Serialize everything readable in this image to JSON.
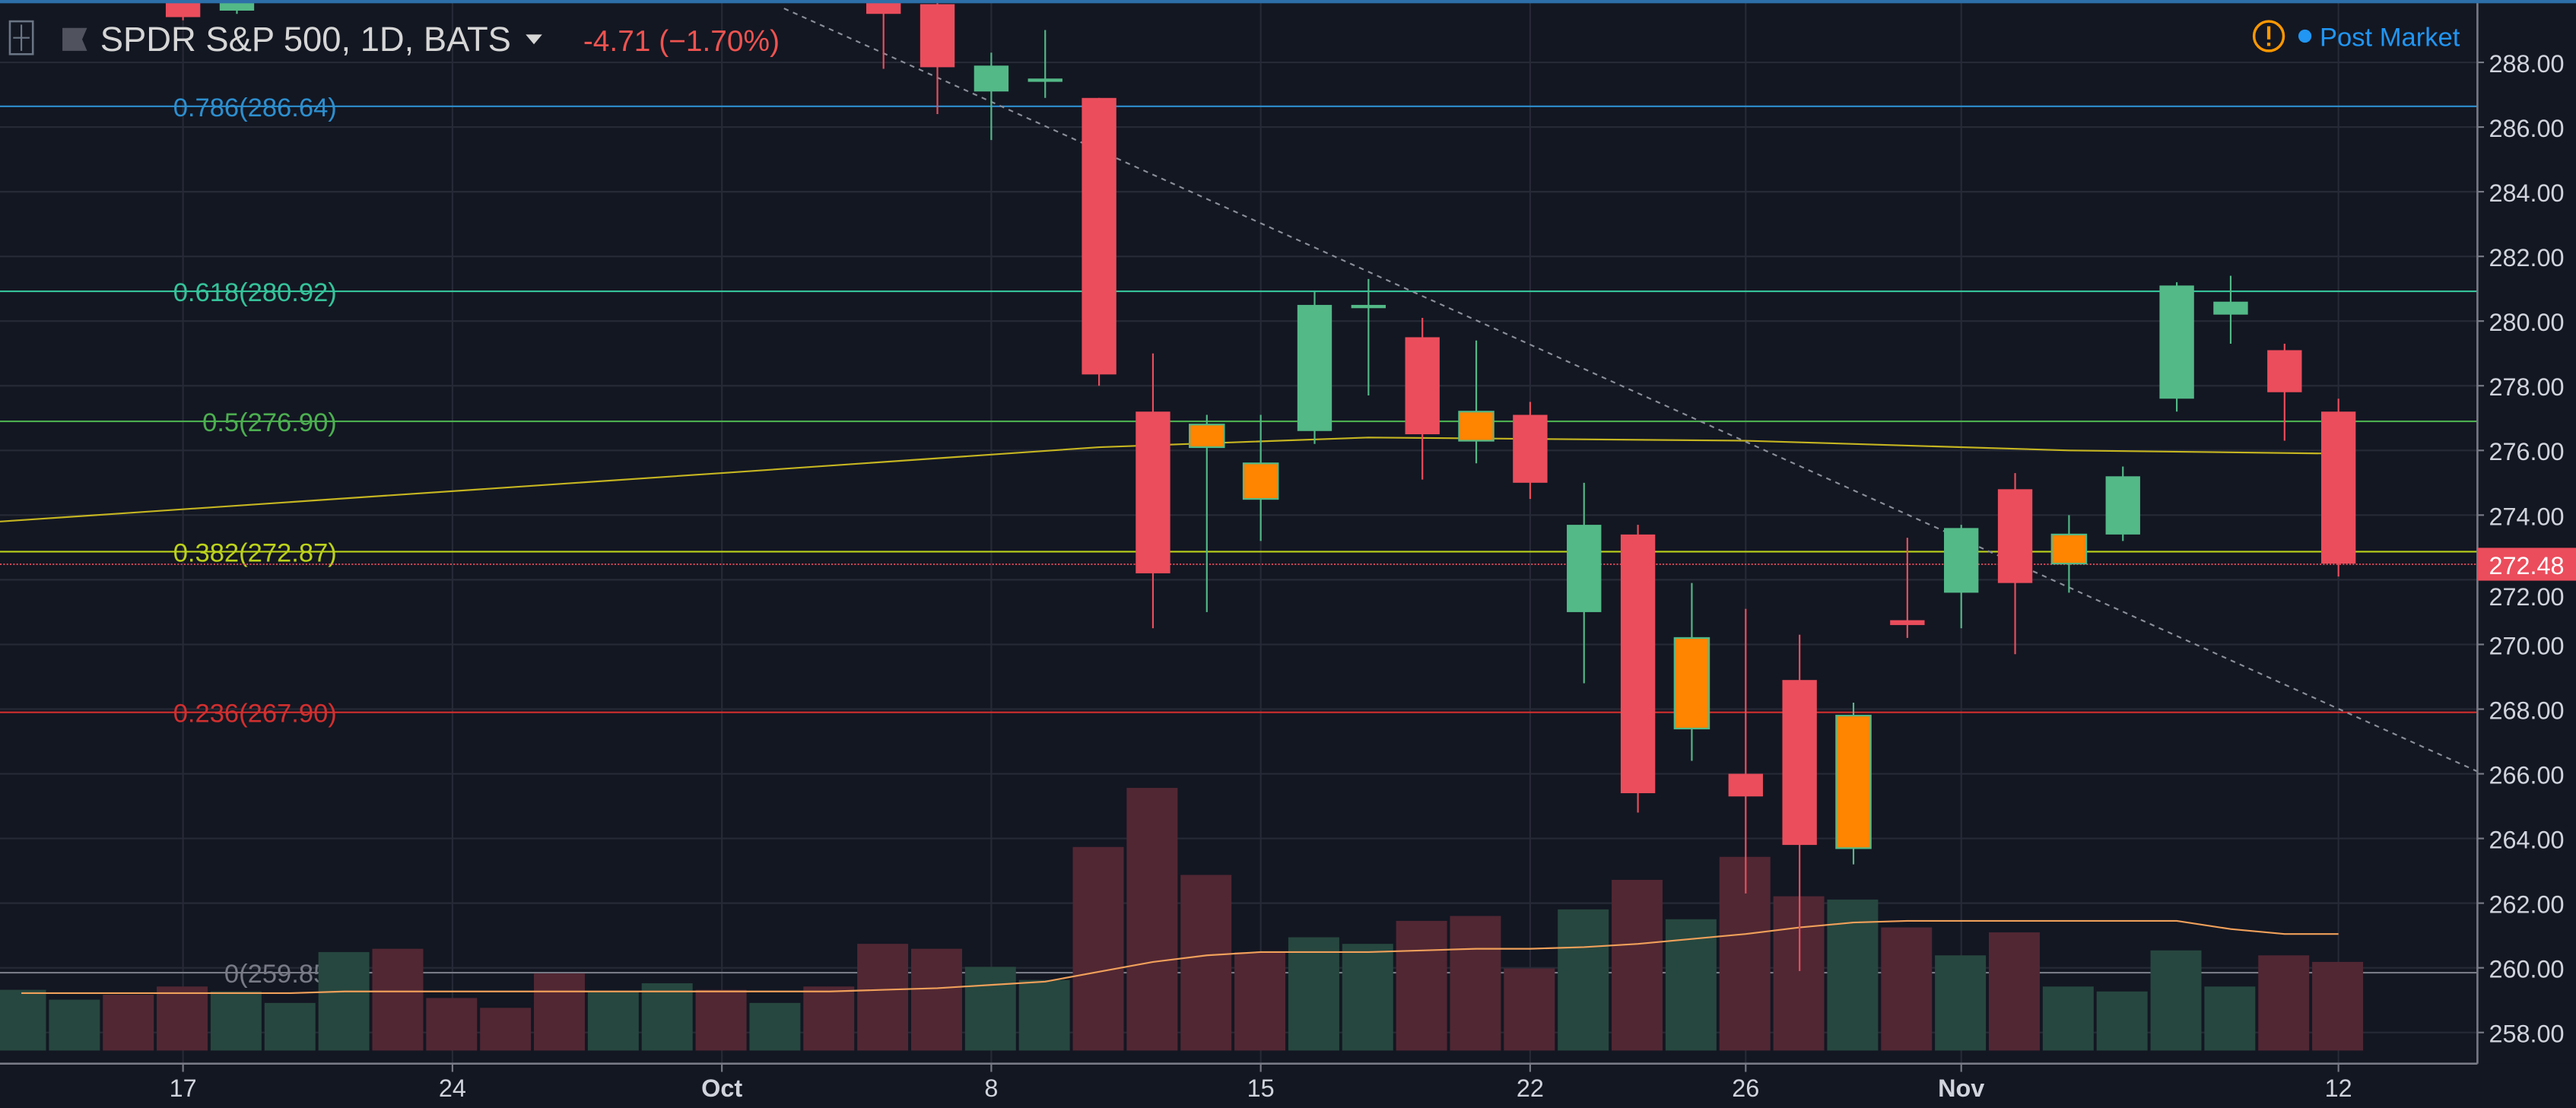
{
  "header": {
    "symbol_title": "SPDR S&P 500, 1D, BATS",
    "change": "-4.71 (−1.70%)",
    "status_label": "Post Market",
    "warning_icon": "exclamation-circle-icon",
    "colors": {
      "change": "#ef5350",
      "status": "#2196f3",
      "warning": "#ff9800"
    }
  },
  "colors": {
    "up": "#53b987",
    "down": "#eb4d5c",
    "highlight": "#ff8400",
    "vol_up": "#26473f",
    "vol_down": "#512733",
    "ma": "#c5b521",
    "vol_ma": "#f0a05a",
    "price_label_bg": "#eb4d5c"
  },
  "chart_data": {
    "type": "candlestick",
    "title": "SPDR S&P 500, 1D, BATS",
    "ylim": [
      257.2,
      289.9
    ],
    "y_ticks": [
      "258.00",
      "260.00",
      "262.00",
      "264.00",
      "266.00",
      "268.00",
      "270.00",
      "272.00",
      "274.00",
      "276.00",
      "278.00",
      "280.00",
      "282.00",
      "284.00",
      "286.00",
      "288.00"
    ],
    "x_ticks": [
      {
        "label": "17",
        "date": "Sep 17"
      },
      {
        "label": "24",
        "date": "Sep 24"
      },
      {
        "label": "Oct",
        "date": "Oct 1"
      },
      {
        "label": "8",
        "date": "Oct 8"
      },
      {
        "label": "15",
        "date": "Oct 15"
      },
      {
        "label": "22",
        "date": "Oct 22"
      },
      {
        "label": "26",
        "date": "Oct 26"
      },
      {
        "label": "Nov",
        "date": "Nov 1"
      },
      {
        "label": "12",
        "date": "Nov 12"
      }
    ],
    "dates": [
      "Sep 12",
      "Sep 13",
      "Sep 14",
      "Sep 17",
      "Sep 18",
      "Sep 19",
      "Sep 20",
      "Sep 21",
      "Sep 24",
      "Sep 25",
      "Sep 26",
      "Sep 27",
      "Sep 28",
      "Oct 1",
      "Oct 2",
      "Oct 3",
      "Oct 4",
      "Oct 5",
      "Oct 8",
      "Oct 9",
      "Oct 10",
      "Oct 11",
      "Oct 12",
      "Oct 15",
      "Oct 16",
      "Oct 17",
      "Oct 18",
      "Oct 19",
      "Oct 22",
      "Oct 23",
      "Oct 24",
      "Oct 25",
      "Oct 26",
      "Oct 29",
      "Oct 30",
      "Oct 31",
      "Nov 1",
      "Nov 2",
      "Nov 5",
      "Nov 6",
      "Nov 7",
      "Nov 8",
      "Nov 9",
      "Nov 12"
    ],
    "candles": [
      {
        "date": "Sep 17",
        "o": 290.0,
        "h": 290.2,
        "l": 289.3,
        "c": 289.4
      },
      {
        "date": "Sep 18",
        "o": 289.6,
        "h": 290.4,
        "l": 289.5,
        "c": 290.3
      },
      {
        "date": "Oct 4",
        "o": 290.0,
        "h": 290.2,
        "l": 287.8,
        "c": 289.5
      },
      {
        "date": "Oct 5",
        "o": 289.8,
        "h": 290.2,
        "l": 286.4,
        "c": 287.85
      },
      {
        "date": "Oct 8",
        "o": 287.1,
        "h": 288.3,
        "l": 285.6,
        "c": 287.9
      },
      {
        "date": "Oct 9",
        "o": 287.4,
        "h": 289.0,
        "l": 286.9,
        "c": 287.5
      },
      {
        "date": "Oct 10",
        "o": 286.9,
        "h": 286.9,
        "l": 278.0,
        "c": 278.35
      },
      {
        "date": "Oct 11",
        "o": 277.2,
        "h": 279.0,
        "l": 270.5,
        "c": 272.2
      },
      {
        "date": "Oct 12",
        "o": 276.1,
        "h": 277.1,
        "l": 271.0,
        "c": 276.8,
        "highlight": true
      },
      {
        "date": "Oct 15",
        "o": 274.5,
        "h": 277.1,
        "l": 273.2,
        "c": 275.6,
        "highlight": true
      },
      {
        "date": "Oct 16",
        "o": 276.6,
        "h": 280.9,
        "l": 276.2,
        "c": 280.5
      },
      {
        "date": "Oct 17",
        "o": 280.4,
        "h": 281.3,
        "l": 277.7,
        "c": 280.5
      },
      {
        "date": "Oct 18",
        "o": 279.5,
        "h": 280.1,
        "l": 275.1,
        "c": 276.5
      },
      {
        "date": "Oct 19",
        "o": 276.3,
        "h": 279.4,
        "l": 275.6,
        "c": 277.2,
        "highlight": true
      },
      {
        "date": "Oct 22",
        "o": 277.1,
        "h": 277.5,
        "l": 274.5,
        "c": 275.0
      },
      {
        "date": "Oct 23",
        "o": 271.0,
        "h": 275.0,
        "l": 268.8,
        "c": 273.7
      },
      {
        "date": "Oct 24",
        "o": 273.4,
        "h": 273.7,
        "l": 264.8,
        "c": 265.4
      },
      {
        "date": "Oct 25",
        "o": 267.4,
        "h": 271.9,
        "l": 266.4,
        "c": 270.2,
        "highlight": true
      },
      {
        "date": "Oct 26",
        "o": 266.0,
        "h": 271.1,
        "l": 262.3,
        "c": 265.3
      },
      {
        "date": "Oct 29",
        "o": 268.9,
        "h": 270.3,
        "l": 259.9,
        "c": 263.8
      },
      {
        "date": "Oct 30",
        "o": 263.7,
        "h": 268.2,
        "l": 263.2,
        "c": 267.8,
        "highlight": true
      },
      {
        "date": "Oct 31",
        "o": 270.75,
        "h": 273.3,
        "l": 270.2,
        "c": 270.6
      },
      {
        "date": "Nov 1",
        "o": 271.6,
        "h": 273.7,
        "l": 270.5,
        "c": 273.6
      },
      {
        "date": "Nov 2",
        "o": 274.8,
        "h": 275.3,
        "l": 269.7,
        "c": 271.9
      },
      {
        "date": "Nov 5",
        "o": 272.5,
        "h": 274.0,
        "l": 271.6,
        "c": 273.4,
        "highlight": true
      },
      {
        "date": "Nov 6",
        "o": 273.4,
        "h": 275.5,
        "l": 273.2,
        "c": 275.2
      },
      {
        "date": "Nov 7",
        "o": 277.6,
        "h": 281.2,
        "l": 277.2,
        "c": 281.1
      },
      {
        "date": "Nov 8",
        "o": 280.2,
        "h": 281.4,
        "l": 279.3,
        "c": 280.6
      },
      {
        "date": "Nov 9",
        "o": 279.1,
        "h": 279.3,
        "l": 276.3,
        "c": 277.8
      },
      {
        "date": "Nov 12",
        "o": 277.2,
        "h": 277.6,
        "l": 272.1,
        "c": 272.5
      }
    ],
    "volume_relative": [
      37,
      31,
      34,
      39,
      36,
      29,
      60,
      62,
      32,
      26,
      47,
      36,
      41,
      37,
      29,
      39,
      65,
      62,
      51,
      43,
      124,
      160,
      107,
      60,
      69,
      65,
      79,
      82,
      50,
      86,
      104,
      80,
      118,
      94,
      92,
      75,
      58,
      72,
      39,
      36,
      61,
      39,
      58,
      54
    ],
    "volume_up": [
      true,
      true,
      false,
      false,
      true,
      true,
      true,
      false,
      false,
      false,
      false,
      true,
      true,
      false,
      true,
      false,
      false,
      false,
      true,
      true,
      false,
      false,
      false,
      false,
      true,
      true,
      false,
      false,
      false,
      true,
      false,
      true,
      false,
      false,
      true,
      false,
      true,
      false,
      true,
      true,
      true,
      true,
      false,
      false
    ],
    "volume_ma_relative": [
      35,
      35,
      35,
      35,
      35,
      35,
      36,
      36,
      36,
      36,
      36,
      36,
      36,
      36,
      36,
      36,
      37,
      38,
      40,
      42,
      48,
      54,
      58,
      60,
      60,
      60,
      61,
      62,
      62,
      63,
      65,
      68,
      71,
      75,
      78,
      79,
      79,
      79,
      79,
      79,
      79,
      74,
      71,
      71
    ],
    "moving_average": {
      "dates": [
        "Sep 12",
        "Oct 1",
        "Oct 10",
        "Oct 17",
        "Oct 26",
        "Nov 5",
        "Nov 12"
      ],
      "values": [
        273.8,
        275.3,
        276.1,
        276.4,
        276.3,
        276.0,
        275.9
      ]
    },
    "fib_levels": [
      {
        "label": "0.786(286.64)",
        "value": 286.64,
        "color": "#2d8fcf"
      },
      {
        "label": "0.618(280.92)",
        "value": 280.92,
        "color": "#35c39a"
      },
      {
        "label": "0.5(276.90)",
        "value": 276.9,
        "color": "#4caf50"
      },
      {
        "label": "0.382(272.87)",
        "value": 272.87,
        "color": "#bcd21a"
      },
      {
        "label": "0.236(267.90)",
        "value": 267.9,
        "color": "#d22f2f"
      },
      {
        "label": "0(259.85)",
        "value": 259.85,
        "color": "#787b86"
      }
    ],
    "trendline": {
      "from": {
        "date": "Oct 2",
        "price": 288.4
      },
      "to": {
        "date": "Nov 16",
        "price": 264.7
      }
    },
    "last_price": {
      "label": "272.48",
      "value": 272.48
    }
  }
}
